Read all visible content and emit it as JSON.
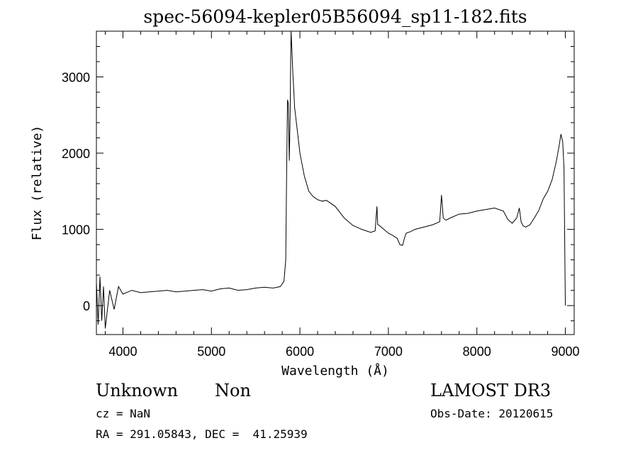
{
  "chart_data": {
    "type": "line",
    "title": "spec-56094-kepler05B56094_sp11-182.fits",
    "xlabel": "Wavelength (Å)",
    "ylabel": "Flux (relative)",
    "xlim": [
      3700,
      9100
    ],
    "ylim": [
      -380,
      3600
    ],
    "xticks": [
      4000,
      5000,
      6000,
      7000,
      8000,
      9000
    ],
    "yticks": [
      0,
      1000,
      2000,
      3000
    ],
    "grid": false,
    "series": [
      {
        "x": [
          3700,
          3720,
          3740,
          3760,
          3780,
          3800,
          3850,
          3900,
          3950,
          4000,
          4100,
          4200,
          4300,
          4400,
          4500,
          4600,
          4700,
          4800,
          4900,
          5000,
          5100,
          5200,
          5300,
          5400,
          5500,
          5600,
          5700,
          5780,
          5820,
          5840,
          5850,
          5860,
          5870,
          5880,
          5890,
          5895,
          5900,
          5910,
          5920,
          5930,
          5940,
          5960,
          5980,
          6000,
          6050,
          6100,
          6150,
          6200,
          6250,
          6300,
          6400,
          6500,
          6600,
          6700,
          6800,
          6850,
          6870,
          6880,
          6900,
          6950,
          7000,
          7050,
          7100,
          7130,
          7160,
          7180,
          7200,
          7250,
          7300,
          7400,
          7500,
          7580,
          7600,
          7620,
          7650,
          7700,
          7800,
          7900,
          8000,
          8100,
          8200,
          8300,
          8350,
          8400,
          8450,
          8480,
          8500,
          8520,
          8550,
          8600,
          8650,
          8700,
          8750,
          8800,
          8850,
          8900,
          8930,
          8950,
          8970,
          8985,
          9000
        ],
        "y": [
          300,
          -250,
          380,
          -200,
          250,
          -300,
          200,
          -50,
          250,
          150,
          200,
          170,
          180,
          190,
          200,
          180,
          190,
          200,
          210,
          190,
          220,
          230,
          200,
          210,
          230,
          240,
          230,
          250,
          320,
          600,
          1800,
          2700,
          2650,
          1900,
          2500,
          3200,
          3600,
          3350,
          3050,
          2850,
          2600,
          2400,
          2200,
          2000,
          1700,
          1500,
          1430,
          1390,
          1370,
          1380,
          1300,
          1150,
          1050,
          1000,
          960,
          980,
          1300,
          1060,
          1050,
          1000,
          950,
          920,
          880,
          800,
          790,
          880,
          950,
          970,
          1000,
          1030,
          1060,
          1100,
          1450,
          1150,
          1120,
          1150,
          1200,
          1210,
          1240,
          1260,
          1280,
          1240,
          1130,
          1080,
          1150,
          1280,
          1100,
          1050,
          1030,
          1060,
          1150,
          1250,
          1400,
          1500,
          1650,
          1900,
          2100,
          2250,
          2150,
          1800,
          0
        ]
      }
    ]
  },
  "info": {
    "class_label": "Unknown",
    "subclass_label": "Non",
    "survey_label": "LAMOST DR3",
    "cz_line": "cz = NaN",
    "obs_date_line": "Obs-Date: 20120615",
    "coords_line": "RA = 291.05843, DEC =  41.25939"
  }
}
